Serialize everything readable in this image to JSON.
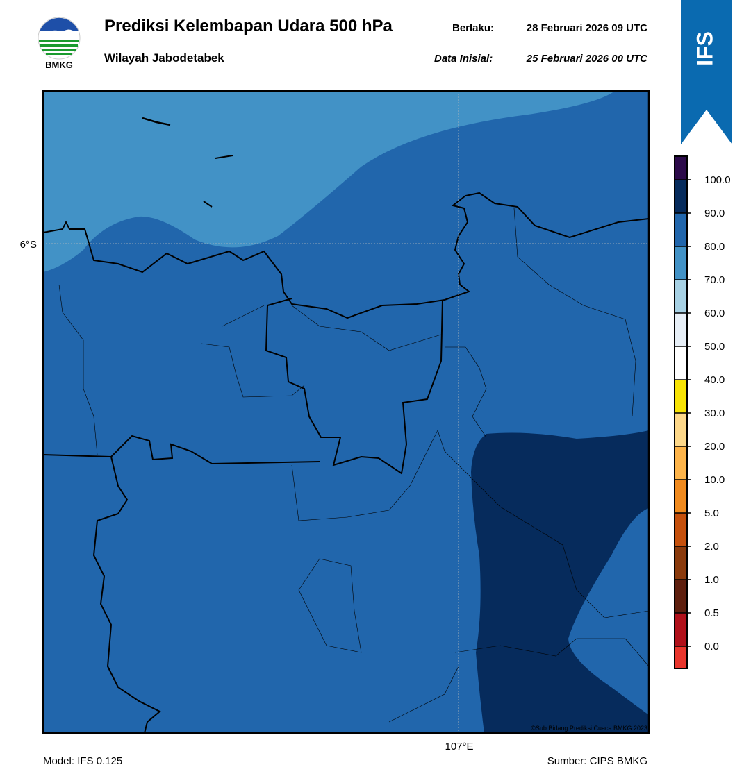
{
  "header": {
    "logo_text": "BMKG",
    "title": "Prediksi Kelembapan Udara 500 hPa",
    "subtitle": "Wilayah Jabodetabek",
    "valid_label": "Berlaku:",
    "valid_time": "28 Februari 2026 09 UTC",
    "init_label": "Data Inisial:",
    "init_time": "25 Februari 2026 00 UTC"
  },
  "badge": "IFS",
  "map": {
    "lat_label": "6°S",
    "lon_label": "107°E",
    "copyright": "©Sub Bidang Prediksi Cuaca BMKG 2023"
  },
  "colorbar": {
    "ticks": [
      "0.0",
      "0.5",
      "1.0",
      "2.0",
      "5.0",
      "10.0",
      "20.0",
      "30.0",
      "40.0",
      "50.0",
      "60.0",
      "70.0",
      "80.0",
      "90.0",
      "100.0"
    ],
    "colors": [
      "#e8352c",
      "#b0101a",
      "#5e1f0e",
      "#8a3a0c",
      "#c5500c",
      "#f08a1e",
      "#fdb44a",
      "#fdd88a",
      "#f7e305",
      "#ffffff",
      "#e7eff7",
      "#a7d1e4",
      "#4292c6",
      "#2166ac",
      "#062b5c",
      "#2c0a4a"
    ]
  },
  "footer": {
    "model": "Model: IFS 0.125",
    "source": "Sumber: CIPS BMKG"
  }
}
